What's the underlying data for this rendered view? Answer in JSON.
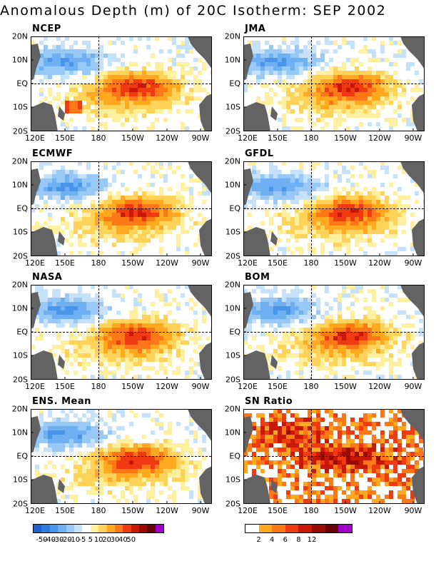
{
  "title": "Anomalous Depth (m) of 20C Isotherm: SEP 2002",
  "axes": {
    "lat_labels": [
      "20N",
      "10N",
      "EQ",
      "10S",
      "20S"
    ],
    "lon_labels": [
      "120E",
      "150E",
      "180",
      "150W",
      "120W",
      "90W"
    ]
  },
  "panels": [
    {
      "title": "NCEP",
      "type": "anomaly",
      "seed": 11
    },
    {
      "title": "JMA",
      "type": "anomaly",
      "seed": 23
    },
    {
      "title": "ECMWF",
      "type": "anomaly",
      "seed": 37
    },
    {
      "title": "GFDL",
      "type": "anomaly",
      "seed": 41
    },
    {
      "title": "NASA",
      "type": "anomaly",
      "seed": 53
    },
    {
      "title": "BOM",
      "type": "anomaly",
      "seed": 67
    },
    {
      "title": "ENS. Mean",
      "type": "anomaly",
      "seed": 79
    },
    {
      "title": "SN Ratio",
      "type": "snratio",
      "seed": 97
    }
  ],
  "colorbar_anomaly": {
    "colors": [
      "#1f5fd0",
      "#2f7ae0",
      "#4a94ea",
      "#6fb0f2",
      "#98c8f6",
      "#c6e2fa",
      "#ffffff",
      "#fff0a0",
      "#ffd35a",
      "#ffa820",
      "#ff7818",
      "#ef3a12",
      "#c81806",
      "#980a02",
      "#6c0000",
      "#a000c8"
    ],
    "labels": [
      "-50",
      "-40",
      "-30",
      "-20",
      "-10",
      "-5",
      "5",
      "10",
      "20",
      "30",
      "40",
      "50"
    ]
  },
  "colorbar_snratio": {
    "colors": [
      "#ffffff",
      "#ffa820",
      "#ff7818",
      "#ef3a12",
      "#c81806",
      "#980a02",
      "#6c0000",
      "#a000c8"
    ],
    "labels": [
      "2",
      "4",
      "6",
      "8",
      "12"
    ]
  },
  "land_color": "#636363"
}
